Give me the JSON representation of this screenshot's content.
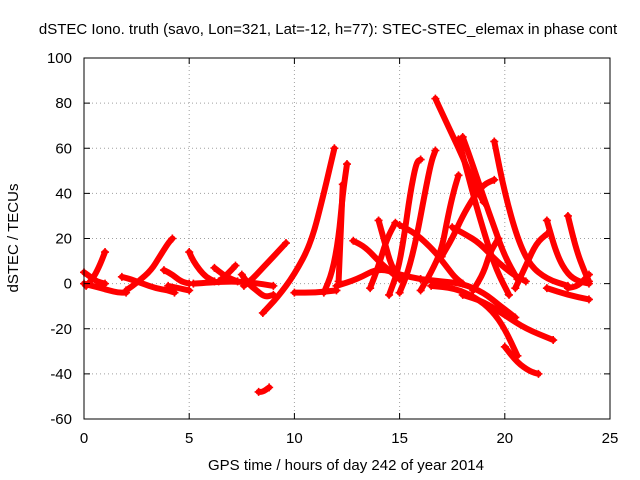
{
  "chart_data": {
    "type": "scatter",
    "title": "dSTEC Iono. truth (savo, Lon=321, Lat=-12, h=77): STEC-STEC_elemax in phase cont",
    "xlabel": "GPS time / hours of day 242 of year 2014",
    "ylabel": "dSTEC  / TECUs",
    "xlim": [
      0,
      25
    ],
    "ylim": [
      -60,
      100
    ],
    "xticks": [
      "0",
      "5",
      "10",
      "15",
      "20",
      "25"
    ],
    "yticks": [
      "-60",
      "-40",
      "-20",
      "0",
      "20",
      "40",
      "60",
      "80",
      "100"
    ],
    "grid": true,
    "legend": "none",
    "colors": {
      "series": "#ff0000",
      "grid": "#a0a0a0",
      "frame": "#000000"
    },
    "series": [
      {
        "x": [
          0.0,
          0.3,
          0.6,
          1.0
        ],
        "y": [
          5,
          3,
          1,
          0
        ]
      },
      {
        "x": [
          0.0,
          0.4,
          0.8,
          1.2,
          1.6,
          2.0
        ],
        "y": [
          0,
          -1,
          -2,
          -3,
          -4,
          -4
        ]
      },
      {
        "x": [
          0.1,
          0.4,
          0.7,
          1.0
        ],
        "y": [
          -1,
          2,
          7,
          14
        ]
      },
      {
        "x": [
          1.8,
          2.2,
          2.8,
          3.4,
          4.0,
          4.3
        ],
        "y": [
          3,
          2,
          0,
          -2,
          -3,
          -4
        ]
      },
      {
        "x": [
          2.0,
          2.6,
          3.2,
          3.6,
          4.0,
          4.2
        ],
        "y": [
          -3,
          1,
          6,
          12,
          18,
          20
        ]
      },
      {
        "x": [
          3.8,
          4.2,
          4.6,
          5.0
        ],
        "y": [
          6,
          4,
          1,
          0
        ]
      },
      {
        "x": [
          4.0,
          4.5,
          5.0
        ],
        "y": [
          -1,
          -2,
          -3
        ]
      },
      {
        "x": [
          5.0,
          5.2,
          5.5,
          5.8,
          6.2
        ],
        "y": [
          14,
          10,
          6,
          3,
          1
        ]
      },
      {
        "x": [
          5.2,
          6.0,
          7.0,
          8.0,
          9.0
        ],
        "y": [
          0,
          0.5,
          1,
          0.5,
          -1
        ]
      },
      {
        "x": [
          6.2,
          6.6,
          7.0,
          7.3
        ],
        "y": [
          7,
          4,
          2,
          1
        ]
      },
      {
        "x": [
          6.4,
          6.8,
          7.2
        ],
        "y": [
          1,
          4,
          8
        ]
      },
      {
        "x": [
          7.5,
          7.8,
          8.2,
          8.6,
          9.0
        ],
        "y": [
          4,
          0,
          -3,
          -6,
          -5
        ]
      },
      {
        "x": [
          7.6,
          8.0,
          8.4,
          8.8,
          9.2,
          9.6
        ],
        "y": [
          -1,
          2,
          6,
          10,
          14,
          18
        ]
      },
      {
        "x": [
          8.3,
          8.5,
          8.8
        ],
        "y": [
          -48,
          -48,
          -46
        ]
      },
      {
        "x": [
          8.5,
          9.2,
          10.0,
          10.8,
          11.4,
          11.9
        ],
        "y": [
          -13,
          -6,
          4,
          18,
          40,
          60
        ]
      },
      {
        "x": [
          10.0,
          11.0,
          12.0
        ],
        "y": [
          -4,
          -4,
          -3
        ]
      },
      {
        "x": [
          11.4,
          11.8,
          12.1,
          12.3,
          12.5
        ],
        "y": [
          -4,
          5,
          20,
          40,
          53
        ]
      },
      {
        "x": [
          12.1,
          12.3
        ],
        "y": [
          1,
          44
        ]
      },
      {
        "x": [
          12.0,
          13.0,
          14.0,
          15.0,
          16.0
        ],
        "y": [
          -1,
          2,
          7,
          4,
          2
        ]
      },
      {
        "x": [
          12.8,
          13.4,
          14.0,
          14.6,
          15.0
        ],
        "y": [
          19,
          16,
          10,
          5,
          2
        ]
      },
      {
        "x": [
          13.6,
          14.0,
          14.4,
          14.8
        ],
        "y": [
          -2,
          8,
          20,
          27
        ]
      },
      {
        "x": [
          14.0,
          14.3,
          14.6,
          15.0
        ],
        "y": [
          28,
          18,
          8,
          2
        ]
      },
      {
        "x": [
          14.5,
          14.9,
          15.2,
          15.5,
          15.8,
          16.0
        ],
        "y": [
          -5,
          5,
          20,
          40,
          54,
          55
        ]
      },
      {
        "x": [
          15.0,
          15.4,
          15.8,
          16.2,
          16.5,
          16.7
        ],
        "y": [
          -4,
          5,
          20,
          40,
          54,
          59
        ]
      },
      {
        "x": [
          16.0,
          16.5,
          17.0,
          17.3,
          17.6,
          17.8
        ],
        "y": [
          -3,
          5,
          15,
          30,
          42,
          48
        ]
      },
      {
        "x": [
          15.0,
          15.8,
          16.6,
          17.2,
          17.6,
          18.0
        ],
        "y": [
          26,
          22,
          15,
          8,
          3,
          0
        ]
      },
      {
        "x": [
          16.0,
          17.0,
          18.0,
          19.0,
          19.8,
          20.5
        ],
        "y": [
          2,
          1,
          0,
          -4,
          -10,
          -15
        ]
      },
      {
        "x": [
          16.5,
          17.6,
          18.6,
          19.4,
          20.0,
          20.6
        ],
        "y": [
          -1,
          -2,
          -6,
          -12,
          -20,
          -32
        ]
      },
      {
        "x": [
          16.7,
          17.0,
          17.5,
          18.0,
          18.5,
          19.0
        ],
        "y": [
          82,
          76,
          66,
          56,
          45,
          36
        ]
      },
      {
        "x": [
          17.0,
          17.5,
          18.0,
          18.5,
          19.0,
          19.5
        ],
        "y": [
          12,
          20,
          30,
          38,
          44,
          46
        ]
      },
      {
        "x": [
          17.5,
          18.1,
          18.8,
          19.6,
          20.4,
          21.0
        ],
        "y": [
          25,
          22,
          18,
          10,
          4,
          1
        ]
      },
      {
        "x": [
          17.8,
          18.2,
          18.6,
          19.1,
          19.6,
          20.2
        ],
        "y": [
          64,
          50,
          36,
          20,
          6,
          -5
        ]
      },
      {
        "x": [
          18.0,
          18.5,
          19.0,
          19.5,
          20.0,
          20.6
        ],
        "y": [
          65,
          52,
          38,
          25,
          12,
          2
        ]
      },
      {
        "x": [
          18.5,
          19.0,
          19.3,
          19.7
        ],
        "y": [
          -3,
          5,
          14,
          20
        ]
      },
      {
        "x": [
          18.0,
          19.0,
          20.0,
          21.0,
          22.3
        ],
        "y": [
          -5,
          -8,
          -14,
          -20,
          -25
        ]
      },
      {
        "x": [
          19.5,
          20.0,
          20.6,
          21.2,
          22.0,
          23.0
        ],
        "y": [
          63,
          40,
          20,
          8,
          2,
          -1
        ]
      },
      {
        "x": [
          20.0,
          20.6,
          21.2,
          21.6
        ],
        "y": [
          -28,
          -35,
          -39,
          -40
        ]
      },
      {
        "x": [
          20.5,
          21.0,
          21.5,
          22.0
        ],
        "y": [
          -2,
          8,
          18,
          22
        ]
      },
      {
        "x": [
          22.0,
          22.5,
          23.0,
          23.5,
          24.0
        ],
        "y": [
          28,
          12,
          4,
          1,
          0
        ]
      },
      {
        "x": [
          22.0,
          23.0,
          24.0
        ],
        "y": [
          -2,
          -5,
          -7
        ]
      },
      {
        "x": [
          23.0,
          23.4,
          23.8,
          24.0
        ],
        "y": [
          30,
          15,
          5,
          1
        ]
      },
      {
        "x": [
          23.0,
          23.5,
          24.0
        ],
        "y": [
          -2,
          -1,
          4
        ]
      }
    ]
  }
}
